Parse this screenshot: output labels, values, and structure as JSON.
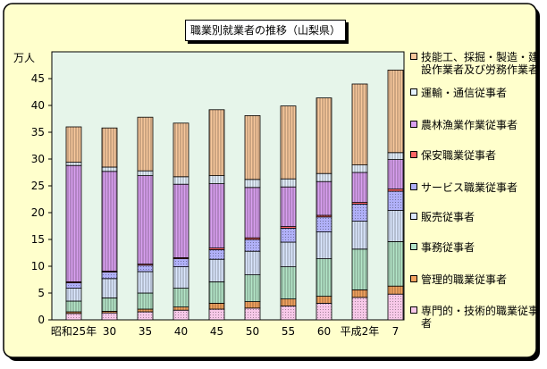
{
  "chart_data": {
    "type": "bar",
    "stacked": true,
    "title": "職業別就業者の推移（山梨県）",
    "unit": "万人",
    "ylim": [
      0,
      50
    ],
    "yticks": [
      0,
      5,
      10,
      15,
      20,
      25,
      30,
      35,
      40,
      45
    ],
    "categories": [
      "昭和25年",
      "30",
      "35",
      "40",
      "45",
      "50",
      "55",
      "60",
      "平成2年",
      "7"
    ],
    "grid": false,
    "legend_position": "right",
    "series": [
      {
        "name": "専門的・技術的職業従事者",
        "color": "#f7c8e8",
        "pattern": "dots",
        "values": [
          1.2,
          1.3,
          1.5,
          1.8,
          2.0,
          2.2,
          2.6,
          3.1,
          4.2,
          4.8
        ]
      },
      {
        "name": "管理的職業従事者",
        "color": "#f4a460",
        "pattern": "vertical",
        "values": [
          0.3,
          0.3,
          0.5,
          0.6,
          1.1,
          1.2,
          1.3,
          1.3,
          1.4,
          1.5
        ]
      },
      {
        "name": "事務従事者",
        "color": "#b4e6c8",
        "pattern": "vertical",
        "values": [
          2.0,
          2.5,
          3.0,
          3.5,
          4.0,
          5.0,
          6.0,
          7.0,
          7.6,
          8.3
        ]
      },
      {
        "name": "販売従事者",
        "color": "#dce8ff",
        "pattern": "vertical",
        "values": [
          2.4,
          3.6,
          4.0,
          4.0,
          4.2,
          4.4,
          4.6,
          5.0,
          5.2,
          5.8
        ]
      },
      {
        "name": "サービス職業従事者",
        "color": "#b0b0f8",
        "pattern": "dots",
        "values": [
          1.0,
          1.2,
          1.2,
          1.5,
          1.8,
          2.2,
          2.6,
          2.8,
          3.2,
          3.6
        ]
      },
      {
        "name": "保安職業従事者",
        "color": "#ff6666",
        "pattern": "dots",
        "values": [
          0.2,
          0.2,
          0.2,
          0.2,
          0.3,
          0.3,
          0.3,
          0.3,
          0.3,
          0.4
        ]
      },
      {
        "name": "農林漁業作業従事者",
        "color": "#d9a0f0",
        "pattern": "vertical",
        "values": [
          21.7,
          18.6,
          16.5,
          13.7,
          12.0,
          9.4,
          7.4,
          6.3,
          5.6,
          5.5
        ]
      },
      {
        "name": "運輸・通信従事者",
        "color": "#e6f2ff",
        "pattern": "vertical",
        "values": [
          0.6,
          0.8,
          0.9,
          1.4,
          1.5,
          1.5,
          1.5,
          1.5,
          1.4,
          1.3
        ]
      },
      {
        "name": "技能工、採掘・製造・建設作業者及び労務作業者",
        "color": "#f8c89c",
        "pattern": "vertical",
        "values": [
          6.6,
          7.3,
          10.0,
          10.0,
          12.3,
          11.9,
          13.6,
          14.1,
          15.1,
          15.4
        ]
      }
    ]
  }
}
